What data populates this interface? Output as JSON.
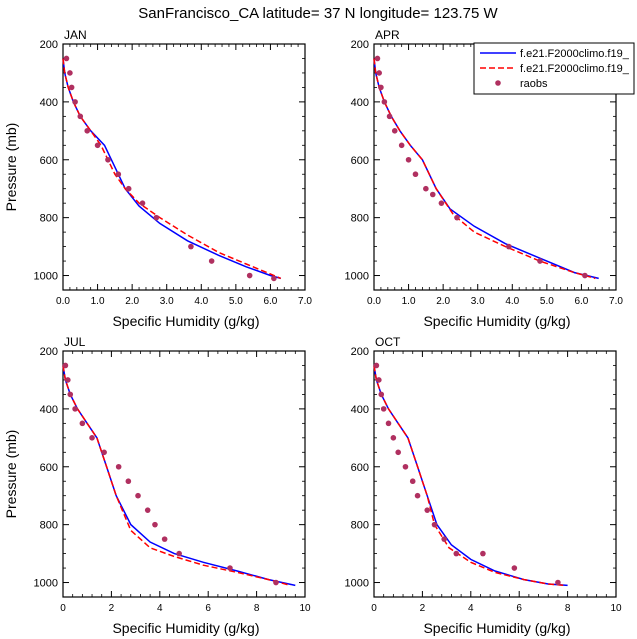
{
  "figure": {
    "title": "SanFrancisco_CA  latitude= 37 N longitude= 123.75 W"
  },
  "legend": {
    "entries": [
      {
        "label": "f.e21.F2000climo.f19_",
        "style": "solid",
        "color": "#0000ff"
      },
      {
        "label": "f.e21.F2000climo.f19_",
        "style": "dashed",
        "color": "#ff0000"
      },
      {
        "label": "raobs",
        "style": "marker",
        "color": "#b03060"
      }
    ]
  },
  "chart_data": [
    {
      "type": "line",
      "panel_label": "JAN",
      "xlabel": "Specific Humidity (g/kg)",
      "ylabel": "Pressure (mb)",
      "xlim": [
        0,
        7
      ],
      "ylim": [
        200,
        1050
      ],
      "y_inverted": true,
      "xticks": [
        "0.0",
        "1.0",
        "2.0",
        "3.0",
        "4.0",
        "5.0",
        "6.0",
        "7.0"
      ],
      "yticks": [
        "200",
        "400",
        "600",
        "800",
        "1000"
      ],
      "series": [
        {
          "color": "#0000ff",
          "dash": "solid",
          "x": [
            0.0,
            0.05,
            0.15,
            0.3,
            0.5,
            0.8,
            1.2,
            1.6,
            1.8,
            2.2,
            2.8,
            3.6,
            4.5,
            5.3,
            6.0,
            6.3
          ],
          "y": [
            250,
            300,
            350,
            400,
            450,
            500,
            550,
            650,
            700,
            760,
            820,
            880,
            930,
            970,
            1000,
            1010
          ]
        },
        {
          "color": "#ff0000",
          "dash": "dashed",
          "x": [
            0.0,
            0.05,
            0.15,
            0.3,
            0.5,
            0.8,
            1.1,
            1.5,
            1.8,
            2.2,
            2.8,
            3.6,
            4.5,
            5.3,
            5.9,
            6.3
          ],
          "y": [
            250,
            300,
            350,
            400,
            450,
            500,
            550,
            650,
            700,
            750,
            800,
            860,
            920,
            960,
            990,
            1010
          ]
        },
        {
          "color": "#b03060",
          "marker": "dot",
          "x": [
            0.1,
            0.2,
            0.25,
            0.35,
            0.5,
            0.7,
            1.0,
            1.3,
            1.6,
            1.9,
            2.3,
            2.7,
            3.7,
            4.3,
            5.4,
            6.1
          ],
          "y": [
            250,
            300,
            350,
            400,
            450,
            500,
            550,
            600,
            650,
            700,
            750,
            800,
            900,
            950,
            1000,
            1010
          ]
        }
      ]
    },
    {
      "type": "line",
      "panel_label": "APR",
      "xlabel": "Specific Humidity (g/kg)",
      "ylabel": "",
      "xlim": [
        0,
        7
      ],
      "ylim": [
        200,
        1050
      ],
      "y_inverted": true,
      "xticks": [
        "0.0",
        "1.0",
        "2.0",
        "3.0",
        "4.0",
        "5.0",
        "6.0",
        "7.0"
      ],
      "yticks": [
        "200",
        "400",
        "600",
        "800",
        "1000"
      ],
      "series": [
        {
          "color": "#0000ff",
          "dash": "solid",
          "x": [
            0.0,
            0.05,
            0.15,
            0.3,
            0.5,
            0.75,
            1.05,
            1.4,
            1.8,
            2.2,
            2.9,
            3.8,
            4.8,
            5.8,
            6.5
          ],
          "y": [
            250,
            300,
            350,
            400,
            450,
            500,
            550,
            600,
            700,
            770,
            830,
            890,
            940,
            990,
            1010
          ]
        },
        {
          "color": "#ff0000",
          "dash": "dashed",
          "x": [
            0.0,
            0.05,
            0.15,
            0.3,
            0.5,
            0.75,
            1.05,
            1.4,
            1.8,
            2.3,
            2.9,
            3.8,
            4.8,
            5.8,
            6.4
          ],
          "y": [
            250,
            300,
            350,
            400,
            450,
            500,
            550,
            600,
            700,
            790,
            850,
            900,
            950,
            990,
            1010
          ]
        },
        {
          "color": "#b03060",
          "marker": "dot",
          "x": [
            0.1,
            0.15,
            0.2,
            0.3,
            0.45,
            0.6,
            0.8,
            1.0,
            1.2,
            1.5,
            1.7,
            1.95,
            2.4,
            3.9,
            4.8,
            6.1
          ],
          "y": [
            250,
            300,
            350,
            400,
            450,
            500,
            550,
            600,
            650,
            700,
            720,
            750,
            800,
            900,
            950,
            1000
          ]
        }
      ]
    },
    {
      "type": "line",
      "panel_label": "JUL",
      "xlabel": "Specific Humidity (g/kg)",
      "ylabel": "Pressure (mb)",
      "xlim": [
        0,
        10
      ],
      "ylim": [
        200,
        1050
      ],
      "y_inverted": true,
      "xticks": [
        "0",
        "2",
        "4",
        "6",
        "8",
        "10"
      ],
      "yticks": [
        "200",
        "400",
        "600",
        "800",
        "1000"
      ],
      "series": [
        {
          "color": "#0000ff",
          "dash": "solid",
          "x": [
            0.0,
            0.1,
            0.3,
            0.6,
            1.0,
            1.4,
            1.8,
            2.2,
            2.8,
            3.6,
            4.6,
            5.8,
            7.2,
            8.5,
            9.6
          ],
          "y": [
            250,
            300,
            350,
            400,
            450,
            500,
            600,
            700,
            800,
            860,
            900,
            930,
            960,
            990,
            1010
          ]
        },
        {
          "color": "#ff0000",
          "dash": "dashed",
          "x": [
            0.0,
            0.1,
            0.3,
            0.6,
            1.0,
            1.4,
            1.8,
            2.2,
            2.8,
            3.6,
            4.6,
            5.8,
            7.2,
            8.5,
            9.4
          ],
          "y": [
            250,
            300,
            350,
            400,
            450,
            500,
            600,
            700,
            820,
            880,
            910,
            940,
            965,
            990,
            1010
          ]
        },
        {
          "color": "#b03060",
          "marker": "dot",
          "x": [
            0.1,
            0.2,
            0.3,
            0.5,
            0.8,
            1.2,
            1.7,
            2.3,
            2.7,
            3.1,
            3.5,
            3.8,
            4.2,
            4.8,
            6.9,
            8.8
          ],
          "y": [
            250,
            300,
            350,
            400,
            450,
            500,
            550,
            600,
            650,
            700,
            750,
            800,
            850,
            900,
            950,
            1000
          ]
        }
      ]
    },
    {
      "type": "line",
      "panel_label": "OCT",
      "xlabel": "Specific Humidity (g/kg)",
      "ylabel": "",
      "xlim": [
        0,
        10
      ],
      "ylim": [
        200,
        1050
      ],
      "y_inverted": true,
      "xticks": [
        "0",
        "2",
        "4",
        "6",
        "8",
        "10"
      ],
      "yticks": [
        "200",
        "400",
        "600",
        "800",
        "1000"
      ],
      "series": [
        {
          "color": "#0000ff",
          "dash": "solid",
          "x": [
            0.0,
            0.1,
            0.3,
            0.6,
            1.0,
            1.4,
            1.8,
            2.2,
            2.6,
            3.2,
            4.0,
            5.0,
            6.2,
            7.2,
            8.0
          ],
          "y": [
            250,
            300,
            350,
            400,
            450,
            500,
            600,
            700,
            800,
            870,
            920,
            960,
            990,
            1005,
            1010
          ]
        },
        {
          "color": "#ff0000",
          "dash": "dashed",
          "x": [
            0.0,
            0.1,
            0.3,
            0.6,
            1.0,
            1.4,
            1.8,
            2.2,
            2.5,
            3.1,
            4.0,
            5.0,
            6.2,
            7.2,
            7.9
          ],
          "y": [
            250,
            300,
            350,
            400,
            450,
            500,
            600,
            700,
            800,
            880,
            930,
            965,
            990,
            1005,
            1010
          ]
        },
        {
          "color": "#b03060",
          "marker": "dot",
          "x": [
            0.1,
            0.2,
            0.3,
            0.4,
            0.6,
            0.8,
            1.0,
            1.3,
            1.6,
            1.8,
            2.2,
            2.5,
            2.9,
            3.4,
            4.5,
            5.8,
            7.6
          ],
          "y": [
            250,
            300,
            350,
            400,
            450,
            500,
            550,
            600,
            650,
            700,
            750,
            800,
            850,
            900,
            900,
            950,
            1000
          ]
        }
      ]
    }
  ]
}
